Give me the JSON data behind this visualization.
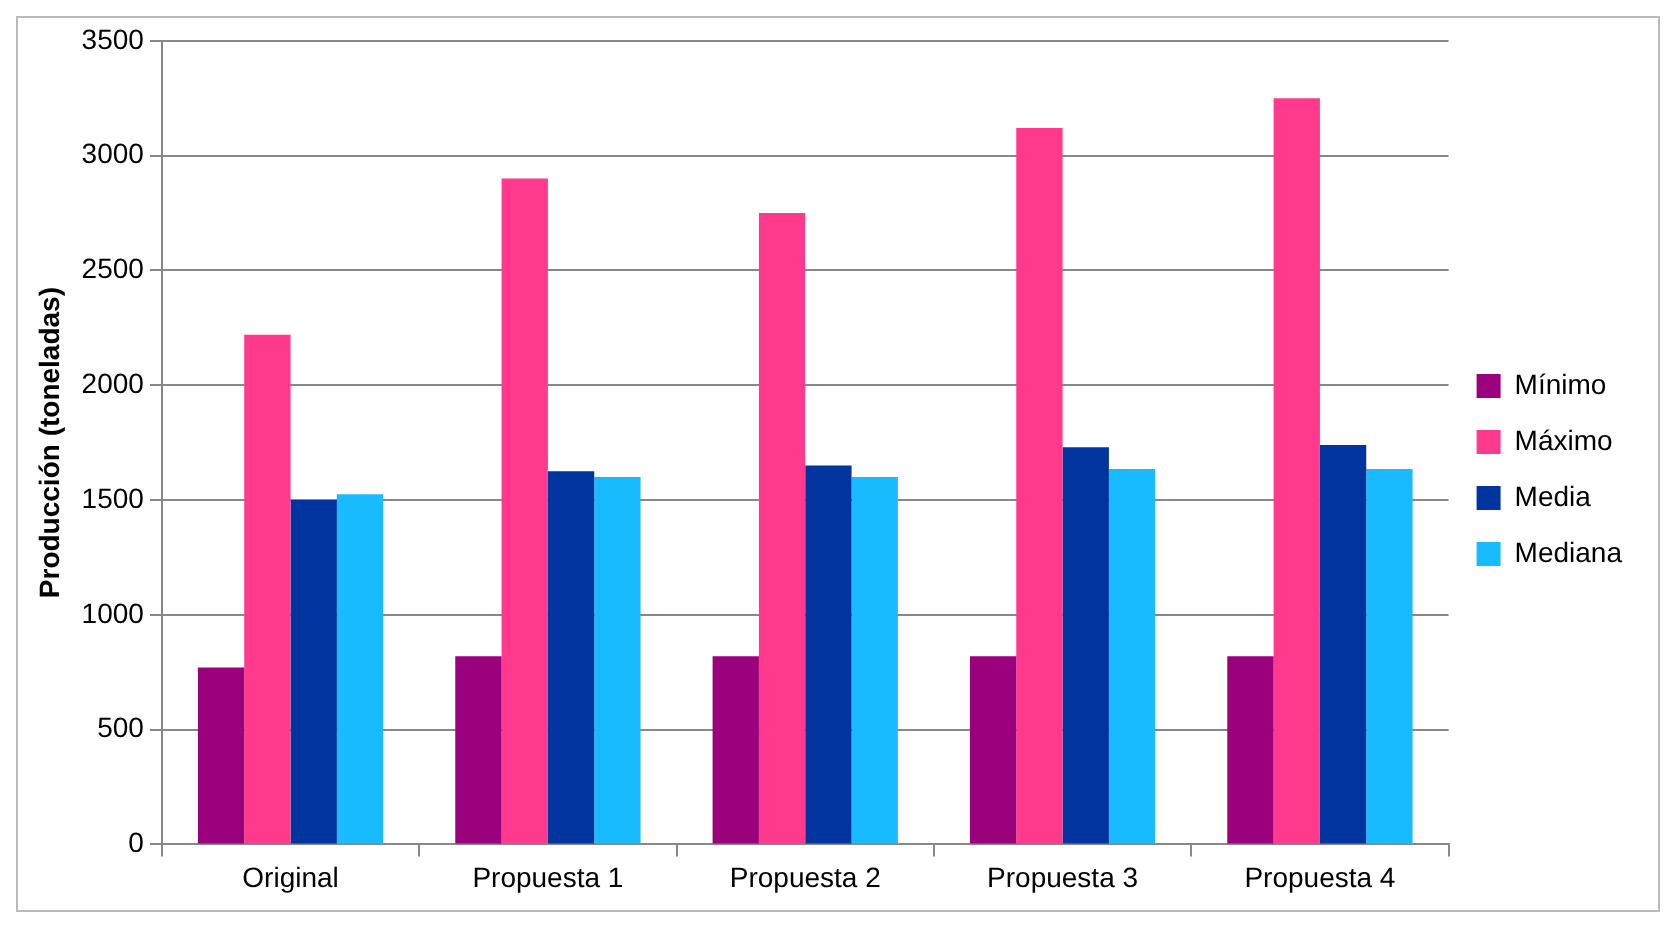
{
  "chart_data": {
    "type": "bar",
    "ylabel": "Producción (toneladas)",
    "categories": [
      "Original",
      "Propuesta 1",
      "Propuesta 2",
      "Propuesta 3",
      "Propuesta 4"
    ],
    "series": [
      {
        "name": "Mínimo",
        "color": "#9b007d",
        "values": [
          770,
          820,
          820,
          820,
          820
        ]
      },
      {
        "name": "Máximo",
        "color": "#ff3a8c",
        "values": [
          2220,
          2900,
          2750,
          3120,
          3250
        ]
      },
      {
        "name": "Media",
        "color": "#00349e",
        "values": [
          1500,
          1625,
          1650,
          1730,
          1740
        ]
      },
      {
        "name": "Mediana",
        "color": "#19bbff",
        "values": [
          1525,
          1600,
          1600,
          1635,
          1635
        ]
      }
    ],
    "ylim": [
      0,
      3500
    ],
    "yticks": [
      0,
      500,
      1000,
      1500,
      2000,
      2500,
      3000,
      3500
    ],
    "grid": "y",
    "legend": "right"
  }
}
